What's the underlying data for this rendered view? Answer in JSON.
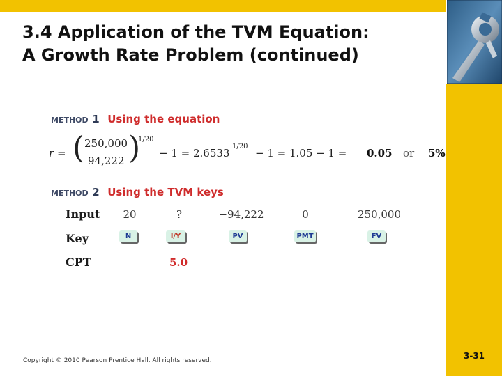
{
  "slide": {
    "title_line1": "3.4 Application of the TVM Equation:",
    "title_line2": "A Growth Rate Problem (continued)"
  },
  "method1": {
    "word": "METHOD",
    "number": "1",
    "title": "Using the equation",
    "equation": {
      "lhs": "r =",
      "numerator": "250,000",
      "denominator": "94,222",
      "exponent": "1/20",
      "minus_one_1": "− 1 = 2.6533",
      "exponent_2": "1/20",
      "minus_one_2": "− 1 = 1.05 − 1 =",
      "result": "0.05",
      "or": "or",
      "percent": "5%"
    }
  },
  "method2": {
    "word": "METHOD",
    "number": "2",
    "title": "Using the TVM keys",
    "rows": {
      "input_label": "Input",
      "key_label": "Key",
      "cpt_label": "CPT"
    },
    "inputs": [
      "20",
      "?",
      "−94,222",
      "0",
      "250,000"
    ],
    "keys": [
      "N",
      "I/Y",
      "PV",
      "PMT",
      "FV"
    ],
    "cpt_value": "5.0"
  },
  "footer": {
    "copyright": "Copyright © 2010 Pearson Prentice Hall. All rights reserved.",
    "page_number": "3-31"
  },
  "colors": {
    "accent_bar": "#f2c200",
    "method_title": "#cf2c2c",
    "key_fill": "#d9f2e6",
    "key_text": "#1f3a93"
  },
  "icons": {
    "corner": "wrench-icon"
  }
}
